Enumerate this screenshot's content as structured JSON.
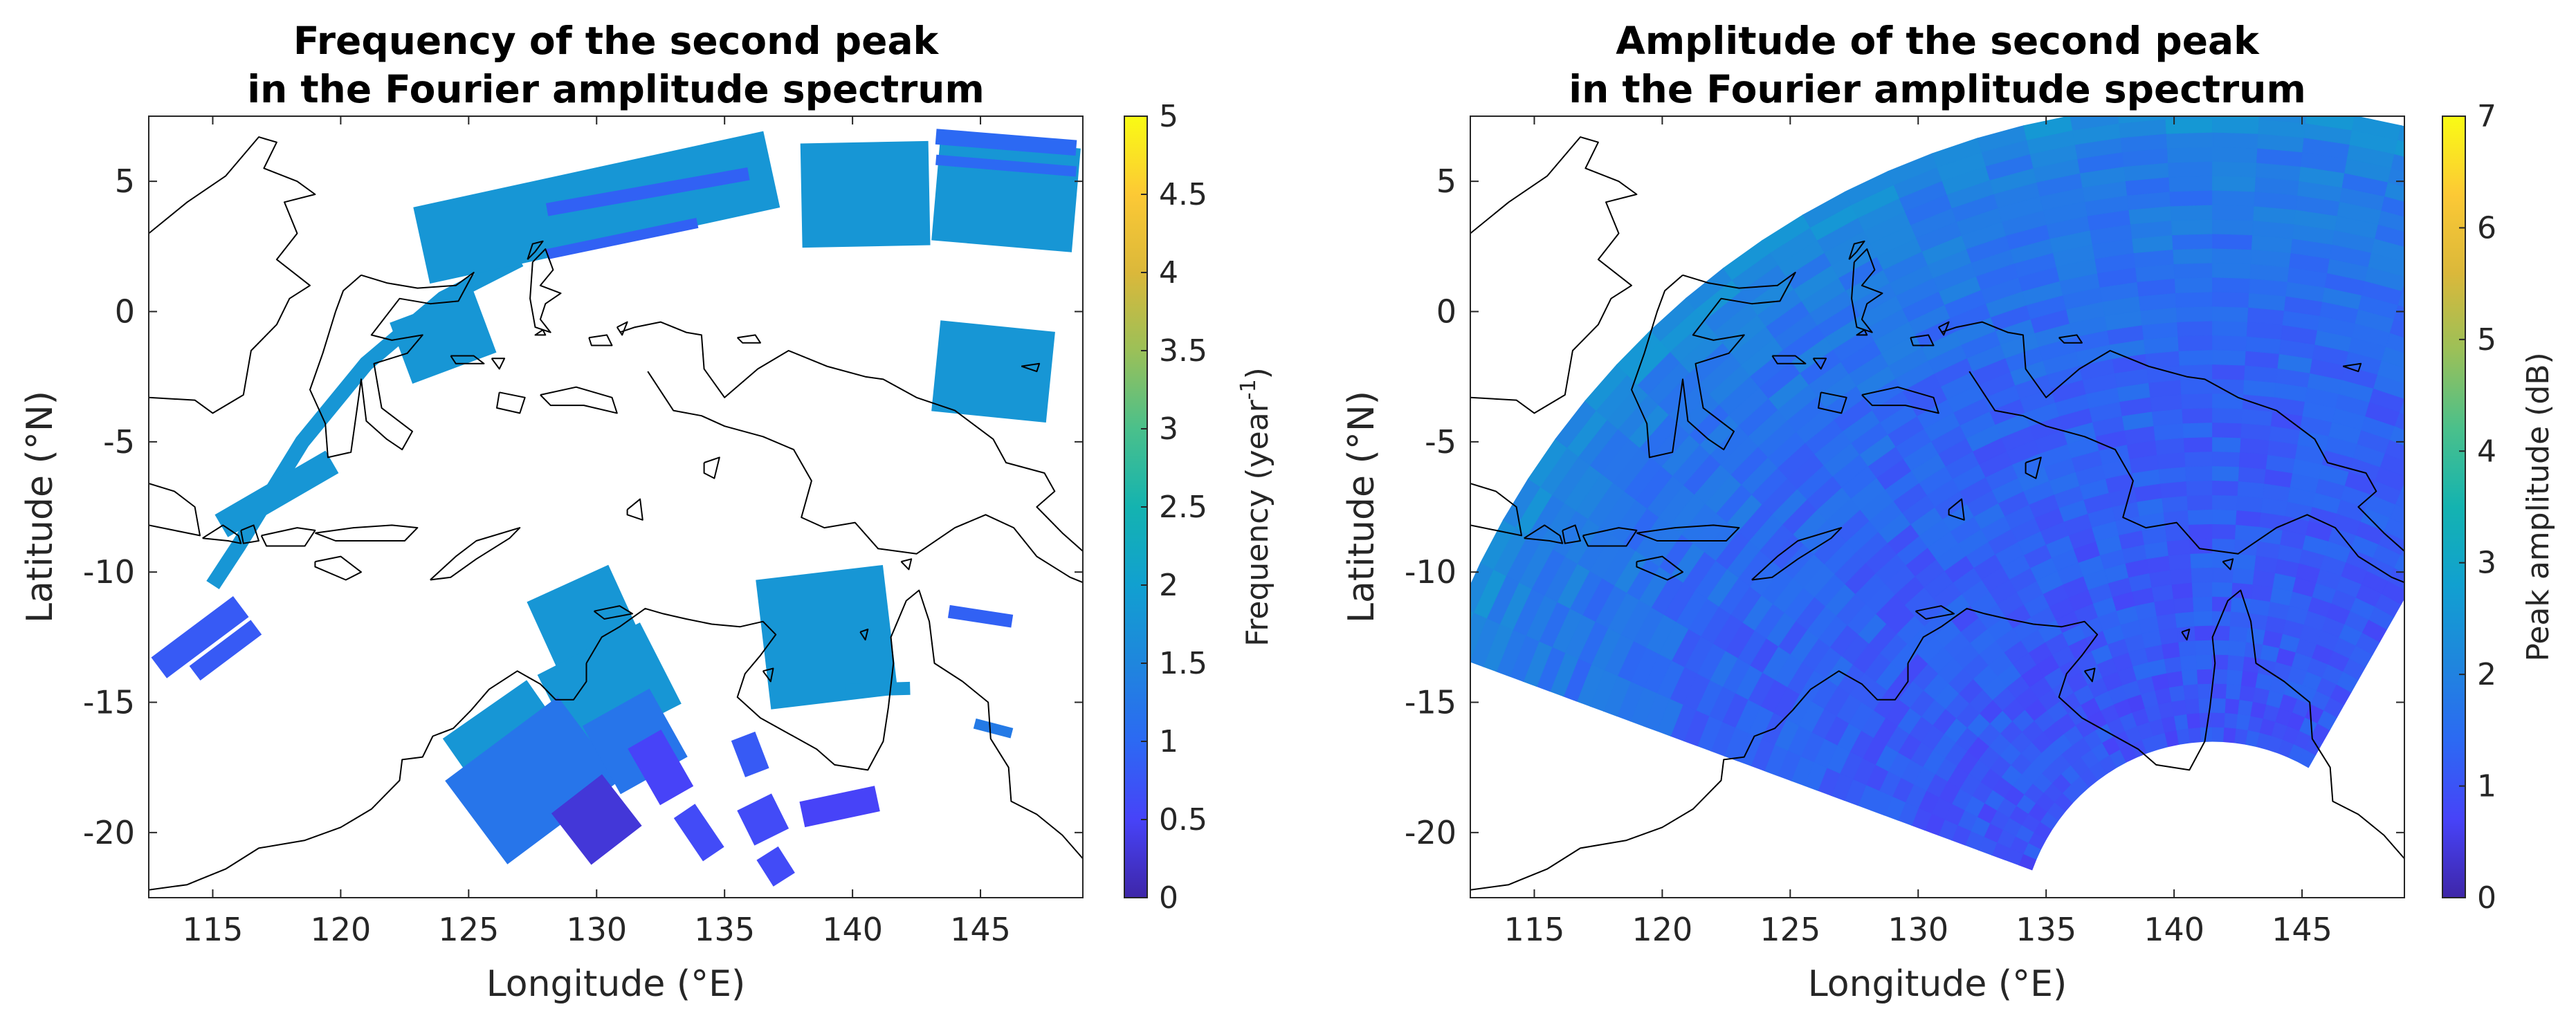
{
  "chart_data": [
    {
      "type": "heatmap",
      "title_line1": "Frequency of the second peak",
      "title_line2": "in the Fourier amplitude spectrum",
      "xlabel": "Longitude (°E)",
      "ylabel": "Latitude (°N)",
      "xlim": [
        112.5,
        149
      ],
      "ylim": [
        -22.5,
        7.5
      ],
      "xticks": [
        115,
        120,
        125,
        130,
        135,
        140,
        145
      ],
      "yticks": [
        5,
        0,
        -5,
        -10,
        -15,
        -20
      ],
      "colorbar": {
        "label_main": "Frequency (year",
        "label_sup": "-1",
        "label_end": ")",
        "range": [
          0,
          5
        ],
        "ticks": [
          "0",
          "0.5",
          "1",
          "1.5",
          "2",
          "2.5",
          "3",
          "3.5",
          "4",
          "4.5",
          "5"
        ],
        "colormap": "parula"
      },
      "cells": [
        {
          "lon": 130.0,
          "lat": 4.0,
          "lon_w": 14.0,
          "lat_h": 3.0,
          "value": 1.8
        },
        {
          "lon": 146.0,
          "lat": 4.5,
          "lon_w": 5.5,
          "lat_h": 4.0,
          "value": 1.8
        },
        {
          "lon": 146.0,
          "lat": 6.5,
          "lon_w": 5.5,
          "lat_h": 0.6,
          "value": 1.0
        },
        {
          "lon": 146.0,
          "lat": 5.6,
          "lon_w": 5.5,
          "lat_h": 0.4,
          "value": 1.0
        },
        {
          "lon": 140.5,
          "lat": 4.5,
          "lon_w": 5.0,
          "lat_h": 4.0,
          "value": 1.8
        },
        {
          "lon": 132.0,
          "lat": 4.6,
          "lon_w": 8.0,
          "lat_h": 0.5,
          "value": 0.9
        },
        {
          "lon": 131.0,
          "lat": 2.8,
          "lon_w": 6.0,
          "lat_h": 0.4,
          "value": 0.9
        },
        {
          "lon": 124.0,
          "lat": -1.0,
          "lon_w": 3.5,
          "lat_h": 2.5,
          "value": 1.8
        },
        {
          "lon": 145.5,
          "lat": -2.3,
          "lon_w": 4.5,
          "lat_h": 3.5,
          "value": 1.8
        },
        {
          "lon": 117.5,
          "lat": -7.0,
          "lon_w": 5.0,
          "lat_h": 1.0,
          "value": 1.8
        },
        {
          "lon": 114.5,
          "lat": -12.5,
          "lon_w": 4.0,
          "lat_h": 1.0,
          "value": 0.8
        },
        {
          "lon": 115.5,
          "lat": -13.0,
          "lon_w": 3.0,
          "lat_h": 0.7,
          "value": 0.8
        },
        {
          "lon": 129.5,
          "lat": -11.8,
          "lon_w": 3.5,
          "lat_h": 3.0,
          "value": 1.8
        },
        {
          "lon": 130.5,
          "lat": -14.5,
          "lon_w": 4.5,
          "lat_h": 3.5,
          "value": 1.8
        },
        {
          "lon": 126.5,
          "lat": -16.5,
          "lon_w": 4.0,
          "lat_h": 3.0,
          "value": 1.8
        },
        {
          "lon": 127.5,
          "lat": -18.0,
          "lon_w": 5.5,
          "lat_h": 4.0,
          "value": 1.2
        },
        {
          "lon": 131.5,
          "lat": -16.5,
          "lon_w": 3.0,
          "lat_h": 3.0,
          "value": 1.2
        },
        {
          "lon": 130.0,
          "lat": -19.5,
          "lon_w": 2.5,
          "lat_h": 2.5,
          "value": 0.3
        },
        {
          "lon": 132.5,
          "lat": -17.5,
          "lon_w": 1.5,
          "lat_h": 2.5,
          "value": 0.5
        },
        {
          "lon": 139.0,
          "lat": -12.5,
          "lon_w": 5.0,
          "lat_h": 5.0,
          "value": 1.8
        },
        {
          "lon": 141.0,
          "lat": -14.5,
          "lon_w": 2.5,
          "lat_h": 0.5,
          "value": 1.8
        },
        {
          "lon": 145.0,
          "lat": -11.7,
          "lon_w": 2.5,
          "lat_h": 0.5,
          "value": 0.9
        },
        {
          "lon": 145.5,
          "lat": -16.0,
          "lon_w": 1.5,
          "lat_h": 0.4,
          "value": 1.3
        },
        {
          "lon": 139.5,
          "lat": -19.0,
          "lon_w": 3.0,
          "lat_h": 1.0,
          "value": 0.5
        },
        {
          "lon": 136.5,
          "lat": -19.5,
          "lon_w": 1.5,
          "lat_h": 1.5,
          "value": 0.6
        },
        {
          "lon": 134.0,
          "lat": -20.0,
          "lon_w": 1.0,
          "lat_h": 2.0,
          "value": 0.6
        },
        {
          "lon": 136.0,
          "lat": -17.0,
          "lon_w": 1.0,
          "lat_h": 1.5,
          "value": 0.8
        },
        {
          "lon": 137.0,
          "lat": -21.3,
          "lon_w": 1.0,
          "lat_h": 1.2,
          "value": 0.6
        }
      ]
    },
    {
      "type": "heatmap",
      "title_line1": "Amplitude of the second peak",
      "title_line2": "in the Fourier amplitude spectrum",
      "xlabel": "Longitude (°E)",
      "ylabel": "Latitude (°N)",
      "xlim": [
        112.5,
        149
      ],
      "ylim": [
        -22.5,
        7.5
      ],
      "xticks": [
        115,
        120,
        125,
        130,
        135,
        140,
        145
      ],
      "yticks": [
        5,
        0,
        -5,
        -10,
        -15,
        -20
      ],
      "colorbar": {
        "label": "Peak amplitude (dB)",
        "range": [
          0,
          7
        ],
        "ticks": [
          "0",
          "1",
          "2",
          "3",
          "4",
          "5",
          "6",
          "7"
        ],
        "colormap": "parula"
      },
      "fan": {
        "origin_lon": 141.5,
        "origin_lat": -24.0,
        "radius_deg": [
          7.5,
          32.0
        ],
        "azimuth_deg": [
          -70,
          30
        ],
        "base_value": 1.3,
        "outer_rim_value": 2.3
      }
    }
  ]
}
